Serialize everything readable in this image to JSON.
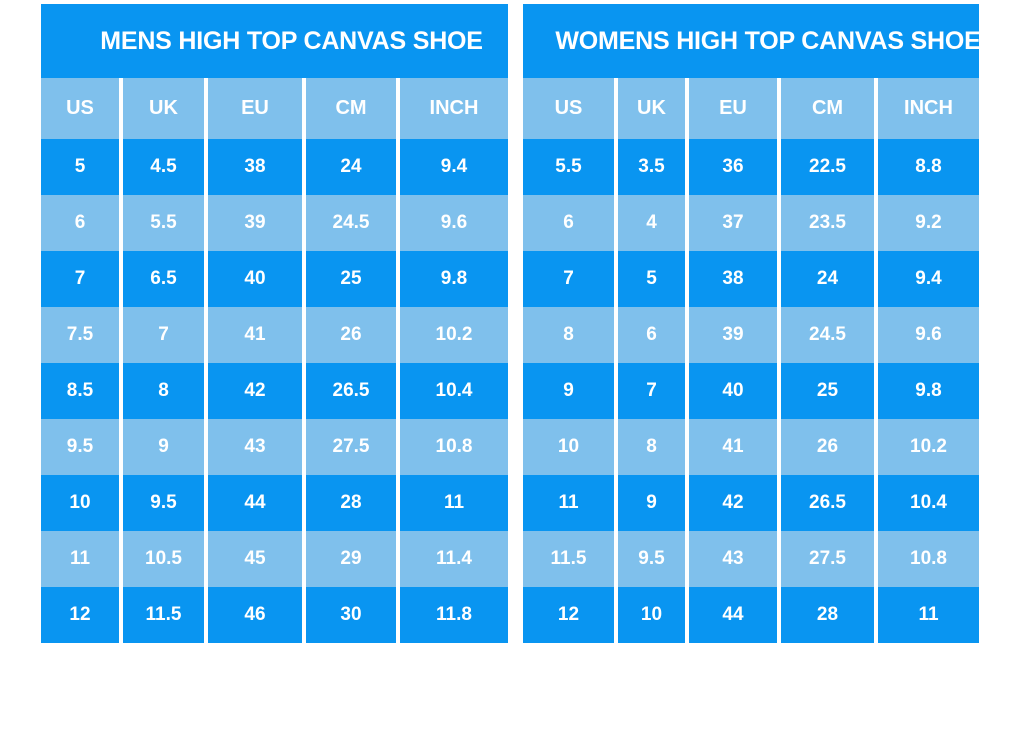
{
  "colors": {
    "primary": "#0995f1",
    "light": "#7fc0ec",
    "separator": "#ffffff",
    "text": "#ffffff",
    "background": "#ffffff"
  },
  "chart_data": [
    {
      "type": "table",
      "id": "mens",
      "title": "MENS HIGH TOP CANVAS SHOE",
      "columns": [
        "US",
        "UK",
        "EU",
        "CM",
        "INCH"
      ],
      "rows": [
        [
          "5",
          "4.5",
          "38",
          "24",
          "9.4"
        ],
        [
          "6",
          "5.5",
          "39",
          "24.5",
          "9.6"
        ],
        [
          "7",
          "6.5",
          "40",
          "25",
          "9.8"
        ],
        [
          "7.5",
          "7",
          "41",
          "26",
          "10.2"
        ],
        [
          "8.5",
          "8",
          "42",
          "26.5",
          "10.4"
        ],
        [
          "9.5",
          "9",
          "43",
          "27.5",
          "10.8"
        ],
        [
          "10",
          "9.5",
          "44",
          "28",
          "11"
        ],
        [
          "11",
          "10.5",
          "45",
          "29",
          "11.4"
        ],
        [
          "12",
          "11.5",
          "46",
          "30",
          "11.8"
        ]
      ],
      "row_shading": "odd rows solid blue, even rows light blue"
    },
    {
      "type": "table",
      "id": "womens",
      "title": "WOMENS HIGH TOP CANVAS SHOE",
      "columns": [
        "US",
        "UK",
        "EU",
        "CM",
        "INCH"
      ],
      "rows": [
        [
          "5.5",
          "3.5",
          "36",
          "22.5",
          "8.8"
        ],
        [
          "6",
          "4",
          "37",
          "23.5",
          "9.2"
        ],
        [
          "7",
          "5",
          "38",
          "24",
          "9.4"
        ],
        [
          "8",
          "6",
          "39",
          "24.5",
          "9.6"
        ],
        [
          "9",
          "7",
          "40",
          "25",
          "9.8"
        ],
        [
          "10",
          "8",
          "41",
          "26",
          "10.2"
        ],
        [
          "11",
          "9",
          "42",
          "26.5",
          "10.4"
        ],
        [
          "11.5",
          "9.5",
          "43",
          "27.5",
          "10.8"
        ],
        [
          "12",
          "10",
          "44",
          "28",
          "11"
        ]
      ],
      "row_shading": "odd rows solid blue, even rows light blue"
    }
  ]
}
